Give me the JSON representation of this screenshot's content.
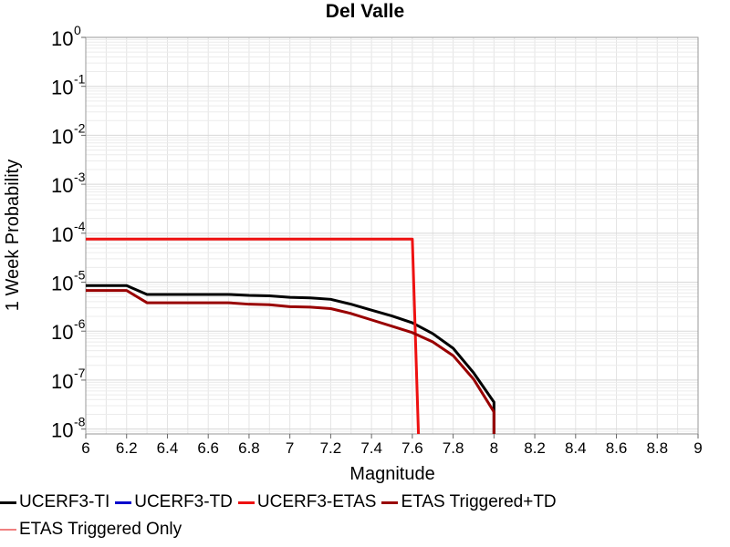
{
  "chart_data": {
    "type": "line",
    "title": "Del Valle",
    "xlabel": "Magnitude",
    "ylabel": "1 Week Probability",
    "xlim": [
      6,
      9
    ],
    "ylim": [
      -8.1,
      0
    ],
    "y_scale": "log",
    "grid": true,
    "x_ticks": [
      "6",
      "6.2",
      "6.4",
      "6.6",
      "6.8",
      "7",
      "7.2",
      "7.4",
      "7.6",
      "7.8",
      "8",
      "8.2",
      "8.4",
      "8.6",
      "8.8",
      "9"
    ],
    "y_ticks": [
      {
        "exp": "0",
        "value": 0
      },
      {
        "exp": "-1",
        "value": -1
      },
      {
        "exp": "-2",
        "value": -2
      },
      {
        "exp": "-3",
        "value": -3
      },
      {
        "exp": "-4",
        "value": -4
      },
      {
        "exp": "-5",
        "value": -5
      },
      {
        "exp": "-6",
        "value": -6
      },
      {
        "exp": "-7",
        "value": -7
      },
      {
        "exp": "-8",
        "value": -8
      }
    ],
    "legend_position": "bottom",
    "series": [
      {
        "name": "UCERF3-TI",
        "color": "#000000",
        "x": [
          6.0,
          6.2,
          6.3,
          6.5,
          6.7,
          6.8,
          6.9,
          7.0,
          7.1,
          7.2,
          7.3,
          7.4,
          7.5,
          7.6,
          7.7,
          7.8,
          7.9,
          8.0,
          8.0
        ],
        "log10_y": [
          -5.07,
          -5.07,
          -5.25,
          -5.25,
          -5.25,
          -5.27,
          -5.28,
          -5.31,
          -5.32,
          -5.35,
          -5.45,
          -5.57,
          -5.69,
          -5.83,
          -6.05,
          -6.35,
          -6.85,
          -7.45,
          -8.1
        ]
      },
      {
        "name": "UCERF3-TD",
        "color": "#0000cc",
        "x": [],
        "log10_y": []
      },
      {
        "name": "UCERF3-ETAS",
        "color": "#ee1111",
        "x": [
          6.0,
          7.6,
          7.63
        ],
        "log10_y": [
          -4.12,
          -4.12,
          -8.1
        ]
      },
      {
        "name": "ETAS Triggered+TD",
        "color": "#990000",
        "x": [
          6.0,
          6.2,
          6.3,
          6.5,
          6.7,
          6.8,
          6.9,
          7.0,
          7.1,
          7.2,
          7.3,
          7.4,
          7.5,
          7.6,
          7.7,
          7.8,
          7.9,
          8.0,
          8.0
        ],
        "log10_y": [
          -5.17,
          -5.17,
          -5.42,
          -5.42,
          -5.42,
          -5.45,
          -5.46,
          -5.5,
          -5.51,
          -5.54,
          -5.64,
          -5.77,
          -5.9,
          -6.03,
          -6.22,
          -6.5,
          -6.98,
          -7.65,
          -8.1
        ]
      },
      {
        "name": "ETAS Triggered Only",
        "color": "#f08080",
        "x": [],
        "log10_y": []
      }
    ]
  }
}
